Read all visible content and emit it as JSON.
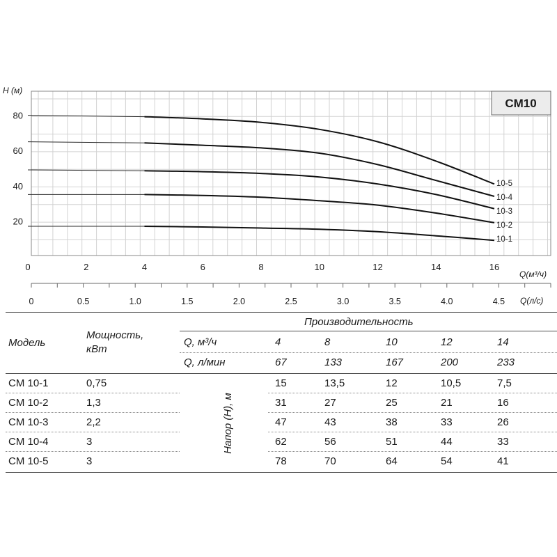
{
  "chart_data": {
    "type": "line",
    "title": "CM10",
    "ylabel": "H (м)",
    "xlabel": "Q(м³/ч)",
    "xlabel_secondary": "Q(л/с)",
    "xlim": [
      0,
      16
    ],
    "ylim": [
      0,
      90
    ],
    "x_ticks": [
      "0",
      "2",
      "4",
      "6",
      "8",
      "10",
      "12",
      "14",
      "16"
    ],
    "y_ticks": [
      "20",
      "40",
      "60",
      "80"
    ],
    "secondary_ticks": [
      "0",
      "0.5",
      "1.0",
      "1.5",
      "2.0",
      "2.5",
      "3.0",
      "3.5",
      "4.0",
      "4.5"
    ],
    "grid": true,
    "series": [
      {
        "name": "10-1",
        "points": [
          [
            0,
            17
          ],
          [
            4,
            17
          ],
          [
            6,
            16.6
          ],
          [
            8,
            16
          ],
          [
            10,
            15.3
          ],
          [
            12,
            13.9
          ],
          [
            14,
            11.6
          ],
          [
            16,
            9
          ]
        ]
      },
      {
        "name": "10-2",
        "points": [
          [
            0,
            35
          ],
          [
            4,
            35
          ],
          [
            6,
            34.5
          ],
          [
            8,
            33.5
          ],
          [
            10,
            31.5
          ],
          [
            12,
            29
          ],
          [
            14,
            24.5
          ],
          [
            16,
            19
          ]
        ]
      },
      {
        "name": "10-3",
        "points": [
          [
            0,
            49
          ],
          [
            4,
            48.5
          ],
          [
            6,
            48
          ],
          [
            8,
            47
          ],
          [
            10,
            45
          ],
          [
            12,
            41
          ],
          [
            14,
            35
          ],
          [
            16,
            27
          ]
        ]
      },
      {
        "name": "10-4",
        "points": [
          [
            0,
            65
          ],
          [
            4,
            64.3
          ],
          [
            6,
            63
          ],
          [
            8,
            61.5
          ],
          [
            10,
            58.5
          ],
          [
            12,
            52
          ],
          [
            14,
            43
          ],
          [
            16,
            34
          ]
        ]
      },
      {
        "name": "10-5",
        "points": [
          [
            0,
            80
          ],
          [
            4,
            79.2
          ],
          [
            6,
            78
          ],
          [
            8,
            76
          ],
          [
            10,
            72
          ],
          [
            12,
            65
          ],
          [
            14,
            54
          ],
          [
            16,
            41
          ]
        ]
      }
    ]
  },
  "table": {
    "col_model": "Модель",
    "col_power": "Мощность,",
    "col_power_unit": "кВт",
    "perf_header": "Производительность",
    "head_label": "Напор (H), м",
    "q_m3_label": "Q, м³/ч",
    "q_lmin_label": "Q, л/мин",
    "q_m3_values": [
      "4",
      "8",
      "10",
      "12",
      "14"
    ],
    "q_lmin_values": [
      "67",
      "133",
      "167",
      "200",
      "233"
    ],
    "rows": [
      {
        "model": "CM 10-1",
        "power": "0,75",
        "heads": [
          "15",
          "13,5",
          "12",
          "10,5",
          "7,5"
        ]
      },
      {
        "model": "CM 10-2",
        "power": "1,3",
        "heads": [
          "31",
          "27",
          "25",
          "21",
          "16"
        ]
      },
      {
        "model": "CM 10-3",
        "power": "2,2",
        "heads": [
          "47",
          "43",
          "38",
          "33",
          "26"
        ]
      },
      {
        "model": "CM 10-4",
        "power": "3",
        "heads": [
          "62",
          "56",
          "51",
          "44",
          "33"
        ]
      },
      {
        "model": "CM 10-5",
        "power": "3",
        "heads": [
          "78",
          "70",
          "64",
          "54",
          "41"
        ]
      }
    ]
  }
}
